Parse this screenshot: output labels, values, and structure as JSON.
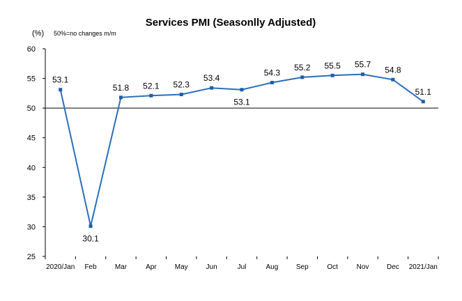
{
  "chart_data": {
    "type": "line",
    "title": "Services PMI (Seasonlly Adjusted)",
    "unit_label": "(%)",
    "note": "50%=no changes  m/m",
    "categories": [
      "2020/Jan",
      "Feb",
      "Mar",
      "Apr",
      "May",
      "Jun",
      "Jul",
      "Aug",
      "Sep",
      "Oct",
      "Nov",
      "Dec",
      "2021/Jan"
    ],
    "series": [
      {
        "values": [
          53.1,
          30.1,
          51.8,
          52.1,
          52.3,
          53.4,
          53.1,
          54.3,
          55.2,
          55.5,
          55.7,
          54.8,
          51.1
        ]
      }
    ],
    "data_labels": [
      "53.1",
      "30.1",
      "51.8",
      "52.1",
      "52.3",
      "53.4",
      "53.1",
      "54.3",
      "55.2",
      "55.5",
      "55.7",
      "54.8",
      "51.1"
    ],
    "ylim": [
      25,
      60
    ],
    "yticks": [
      25,
      30,
      35,
      40,
      45,
      50,
      55,
      60
    ],
    "baseline": 50,
    "grid": false,
    "legend": "none",
    "colors": {
      "line": "#2a6ebb",
      "marker": "#1f5fa8",
      "axis": "#000000"
    }
  }
}
